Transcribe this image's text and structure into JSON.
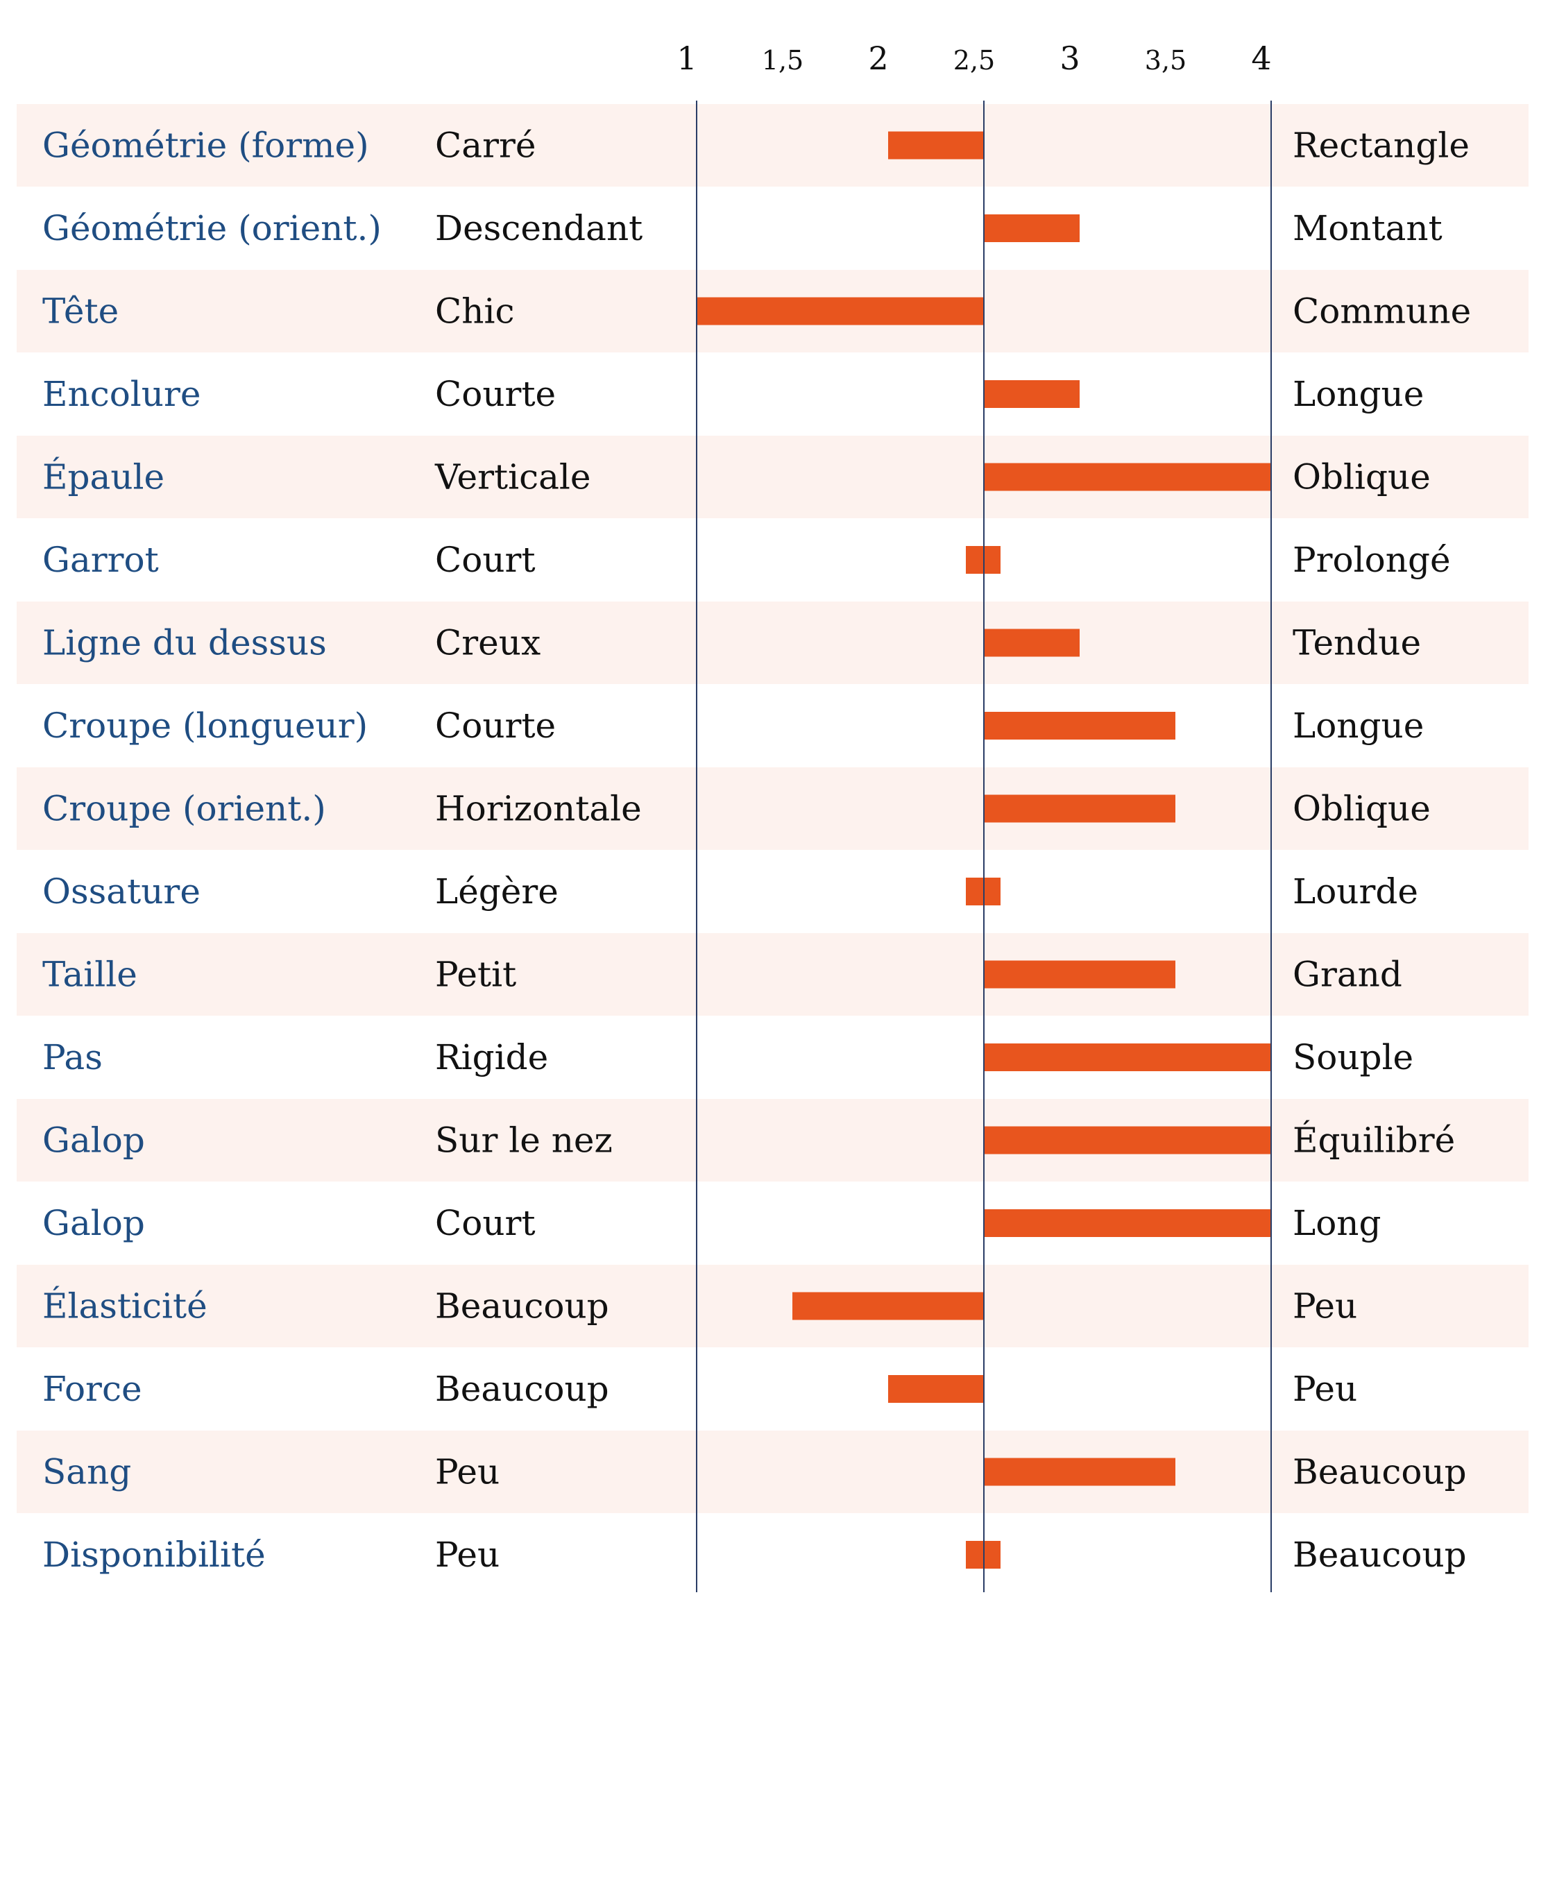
{
  "chart_data": {
    "type": "bar",
    "orientation": "horizontal",
    "baseline": 2.5,
    "xlim": [
      1,
      4
    ],
    "x_ticks": [
      1,
      1.5,
      2,
      2.5,
      3,
      3.5,
      4
    ],
    "x_tick_labels": [
      "1",
      "1,5",
      "2",
      "2,5",
      "3",
      "3,5",
      "4"
    ],
    "grid": false,
    "colors": {
      "bar": "#e8551e",
      "trait_text": "#1f4d82",
      "stripe": "#fdf2ee",
      "axis_line": "#2a3d66"
    },
    "rows": [
      {
        "trait": "Géométrie (forme)",
        "low": "Carré",
        "high": "Rectangle",
        "value": 2
      },
      {
        "trait": "Géométrie (orient.)",
        "low": "Descendant",
        "high": "Montant",
        "value": 3
      },
      {
        "trait": "Tête",
        "low": "Chic",
        "high": "Commune",
        "value": 1
      },
      {
        "trait": "Encolure",
        "low": "Courte",
        "high": "Longue",
        "value": 3
      },
      {
        "trait": "Épaule",
        "low": "Verticale",
        "high": "Oblique",
        "value": 4
      },
      {
        "trait": "Garrot",
        "low": "Court",
        "high": "Prolongé",
        "value": 2.5
      },
      {
        "trait": "Ligne du dessus",
        "low": "Creux",
        "high": "Tendue",
        "value": 3
      },
      {
        "trait": "Croupe (longueur)",
        "low": "Courte",
        "high": "Longue",
        "value": 3.5
      },
      {
        "trait": "Croupe (orient.)",
        "low": "Horizontale",
        "high": "Oblique",
        "value": 3.5
      },
      {
        "trait": "Ossature",
        "low": "Légère",
        "high": "Lourde",
        "value": 2.5
      },
      {
        "trait": "Taille",
        "low": "Petit",
        "high": "Grand",
        "value": 3.5
      },
      {
        "trait": "Pas",
        "low": "Rigide",
        "high": "Souple",
        "value": 4
      },
      {
        "trait": "Galop",
        "low": "Sur le nez",
        "high": "Équilibré",
        "value": 4
      },
      {
        "trait": "Galop",
        "low": "Court",
        "high": "Long",
        "value": 4
      },
      {
        "trait": "Élasticité",
        "low": "Beaucoup",
        "high": "Peu",
        "value": 1.5
      },
      {
        "trait": "Force",
        "low": "Beaucoup",
        "high": "Peu",
        "value": 2
      },
      {
        "trait": "Sang",
        "low": "Peu",
        "high": "Beaucoup",
        "value": 3.5
      },
      {
        "trait": "Disponibilité",
        "low": "Peu",
        "high": "Beaucoup",
        "value": 2.5
      }
    ]
  }
}
